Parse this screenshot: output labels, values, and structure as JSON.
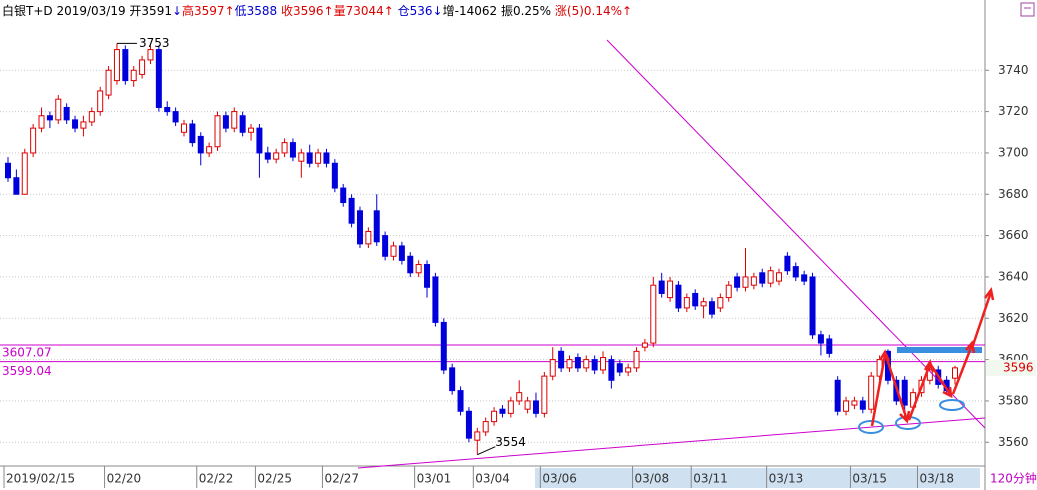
{
  "header": [
    {
      "text": "白银T+D 2019/03/19 开3591",
      "color": "#000000"
    },
    {
      "text": "↓",
      "color": "#0000cc"
    },
    {
      "text": "高3597↑",
      "color": "#dd0000"
    },
    {
      "text": "低3588 ",
      "color": "#0000cc"
    },
    {
      "text": "收3596↑",
      "color": "#dd0000"
    },
    {
      "text": "量73044↑ ",
      "color": "#dd0000"
    },
    {
      "text": "仓536↓",
      "color": "#0000cc"
    },
    {
      "text": "增-14062 振0.25% ",
      "color": "#000000"
    },
    {
      "text": "涨(5)0.14%↑",
      "color": "#dd0000"
    }
  ],
  "chart_data": {
    "type": "candlestick",
    "up_color": "#dd0000",
    "down_color": "#0000dd",
    "ylim": [
      3549,
      3774
    ],
    "yticks": [
      3560,
      3580,
      3600,
      3620,
      3640,
      3660,
      3680,
      3700,
      3720,
      3740
    ],
    "grid": true,
    "high_mark": 3753,
    "low_mark": 3554,
    "hlines": [
      3607.07,
      3599.04
    ],
    "hline_color": "#cc00cc",
    "last_price": 3596,
    "period": "120分钟",
    "categories": [
      "2019/02/15",
      null,
      null,
      null,
      null,
      null,
      null,
      null,
      null,
      null,
      null,
      null,
      "02/20",
      null,
      null,
      null,
      null,
      null,
      null,
      null,
      null,
      null,
      null,
      "02/22",
      null,
      null,
      null,
      null,
      null,
      null,
      "02/25",
      null,
      null,
      null,
      null,
      null,
      null,
      null,
      "02/27",
      null,
      null,
      null,
      null,
      null,
      null,
      null,
      null,
      null,
      null,
      "03/01",
      null,
      null,
      null,
      null,
      null,
      null,
      "03/04",
      null,
      null,
      null,
      null,
      null,
      null,
      null,
      "03/06",
      null,
      null,
      null,
      null,
      null,
      null,
      null,
      null,
      null,
      null,
      "03/08",
      null,
      null,
      null,
      null,
      null,
      null,
      "03/11",
      null,
      null,
      null,
      null,
      null,
      null,
      null,
      null,
      "03/13",
      null,
      null,
      null,
      null,
      null,
      null,
      null,
      null,
      null,
      "03/15",
      null,
      null,
      null,
      null,
      null,
      null,
      null,
      "03/18",
      null,
      null,
      null,
      null
    ],
    "candles": [
      [
        3695,
        3698,
        3686,
        3688
      ],
      [
        3688,
        3692,
        3680,
        3680
      ],
      [
        3680,
        3702,
        3680,
        3700
      ],
      [
        3700,
        3714,
        3698,
        3712
      ],
      [
        3712,
        3722,
        3710,
        3718
      ],
      [
        3718,
        3720,
        3712,
        3716
      ],
      [
        3716,
        3728,
        3714,
        3726
      ],
      [
        3722,
        3724,
        3714,
        3716
      ],
      [
        3716,
        3718,
        3710,
        3712
      ],
      [
        3712,
        3718,
        3708,
        3715
      ],
      [
        3715,
        3722,
        3713,
        3720
      ],
      [
        3720,
        3732,
        3718,
        3730
      ],
      [
        3728,
        3742,
        3726,
        3740
      ],
      [
        3735,
        3753,
        3733,
        3750
      ],
      [
        3750,
        3752,
        3733,
        3735
      ],
      [
        3735,
        3742,
        3732,
        3740
      ],
      [
        3738,
        3747,
        3736,
        3745
      ],
      [
        3745,
        3752,
        3743,
        3750
      ],
      [
        3750,
        3752,
        3720,
        3722
      ],
      [
        3722,
        3725,
        3718,
        3720
      ],
      [
        3720,
        3722,
        3713,
        3715
      ],
      [
        3710,
        3716,
        3708,
        3714
      ],
      [
        3714,
        3716,
        3703,
        3705
      ],
      [
        3708,
        3710,
        3694,
        3700
      ],
      [
        3700,
        3705,
        3698,
        3703
      ],
      [
        3703,
        3720,
        3701,
        3718
      ],
      [
        3718,
        3720,
        3710,
        3712
      ],
      [
        3712,
        3722,
        3710,
        3720
      ],
      [
        3718,
        3720,
        3708,
        3710
      ],
      [
        3710,
        3714,
        3706,
        3712
      ],
      [
        3712,
        3714,
        3688,
        3700
      ],
      [
        3700,
        3703,
        3695,
        3697
      ],
      [
        3697,
        3702,
        3695,
        3700
      ],
      [
        3700,
        3707,
        3698,
        3705
      ],
      [
        3705,
        3707,
        3696,
        3698
      ],
      [
        3696,
        3702,
        3688,
        3700
      ],
      [
        3700,
        3704,
        3693,
        3695
      ],
      [
        3695,
        3702,
        3693,
        3700
      ],
      [
        3700,
        3702,
        3693,
        3695
      ],
      [
        3695,
        3697,
        3681,
        3683
      ],
      [
        3683,
        3685,
        3674,
        3676
      ],
      [
        3678,
        3680,
        3664,
        3666
      ],
      [
        3672,
        3674,
        3654,
        3656
      ],
      [
        3656,
        3664,
        3654,
        3662
      ],
      [
        3672,
        3680,
        3655,
        3657
      ],
      [
        3660,
        3662,
        3648,
        3650
      ],
      [
        3650,
        3657,
        3648,
        3655
      ],
      [
        3655,
        3657,
        3646,
        3648
      ],
      [
        3650,
        3652,
        3640,
        3642
      ],
      [
        3642,
        3648,
        3640,
        3646
      ],
      [
        3646,
        3648,
        3630,
        3635
      ],
      [
        3640,
        3642,
        3616,
        3618
      ],
      [
        3618,
        3620,
        3593,
        3595
      ],
      [
        3596,
        3598,
        3583,
        3585
      ],
      [
        3585,
        3587,
        3573,
        3575
      ],
      [
        3575,
        3577,
        3560,
        3562
      ],
      [
        3561,
        3567,
        3554,
        3565
      ],
      [
        3565,
        3572,
        3563,
        3570
      ],
      [
        3570,
        3577,
        3568,
        3575
      ],
      [
        3576,
        3578,
        3572,
        3574
      ],
      [
        3574,
        3582,
        3572,
        3580
      ],
      [
        3580,
        3590,
        3578,
        3584
      ],
      [
        3576,
        3582,
        3574,
        3580
      ],
      [
        3580,
        3584,
        3572,
        3574
      ],
      [
        3574,
        3594,
        3572,
        3592
      ],
      [
        3592,
        3606,
        3590,
        3600
      ],
      [
        3604,
        3606,
        3594,
        3596
      ],
      [
        3596,
        3602,
        3594,
        3600
      ],
      [
        3601,
        3603,
        3594,
        3596
      ],
      [
        3596,
        3602,
        3594,
        3600
      ],
      [
        3600,
        3602,
        3593,
        3595
      ],
      [
        3595,
        3604,
        3593,
        3601
      ],
      [
        3600,
        3602,
        3586,
        3590
      ],
      [
        3598,
        3600,
        3592,
        3594
      ],
      [
        3594,
        3598,
        3592,
        3596
      ],
      [
        3596,
        3606,
        3594,
        3604
      ],
      [
        3606,
        3610,
        3604,
        3608
      ],
      [
        3608,
        3640,
        3606,
        3636
      ],
      [
        3638,
        3642,
        3630,
        3632
      ],
      [
        3630,
        3640,
        3628,
        3638
      ],
      [
        3636,
        3638,
        3623,
        3625
      ],
      [
        3625,
        3632,
        3623,
        3630
      ],
      [
        3632,
        3634,
        3624,
        3626
      ],
      [
        3626,
        3630,
        3620,
        3628
      ],
      [
        3628,
        3630,
        3620,
        3622
      ],
      [
        3625,
        3632,
        3623,
        3630
      ],
      [
        3630,
        3638,
        3628,
        3636
      ],
      [
        3640,
        3642,
        3633,
        3635
      ],
      [
        3635,
        3654,
        3633,
        3640
      ],
      [
        3636,
        3642,
        3634,
        3640
      ],
      [
        3642,
        3644,
        3635,
        3637
      ],
      [
        3637,
        3645,
        3635,
        3643
      ],
      [
        3638,
        3644,
        3636,
        3642
      ],
      [
        3650,
        3652,
        3641,
        3643
      ],
      [
        3645,
        3647,
        3638,
        3640
      ],
      [
        3641,
        3643,
        3636,
        3638
      ],
      [
        3640,
        3642,
        3610,
        3612
      ],
      [
        3612,
        3614,
        3602,
        3608
      ],
      [
        3610,
        3612,
        3601,
        3603
      ],
      [
        3590,
        3592,
        3573,
        3575
      ],
      [
        3575,
        3582,
        3573,
        3580
      ],
      [
        3578,
        3582,
        3576,
        3580
      ],
      [
        3580,
        3582,
        3574,
        3576
      ],
      [
        3576,
        3594,
        3574,
        3592
      ],
      [
        3592,
        3602,
        3590,
        3600
      ],
      [
        3604,
        3605,
        3588,
        3590
      ],
      [
        3590,
        3592,
        3578,
        3580
      ],
      [
        3590,
        3592,
        3572,
        3578
      ],
      [
        3577,
        3586,
        3575,
        3584
      ],
      [
        3584,
        3592,
        3582,
        3590
      ],
      [
        3590,
        3597,
        3588,
        3595
      ],
      [
        3595,
        3597,
        3586,
        3588
      ],
      [
        3590,
        3592,
        3583,
        3585
      ],
      [
        3591,
        3597,
        3588,
        3596
      ]
    ]
  }
}
